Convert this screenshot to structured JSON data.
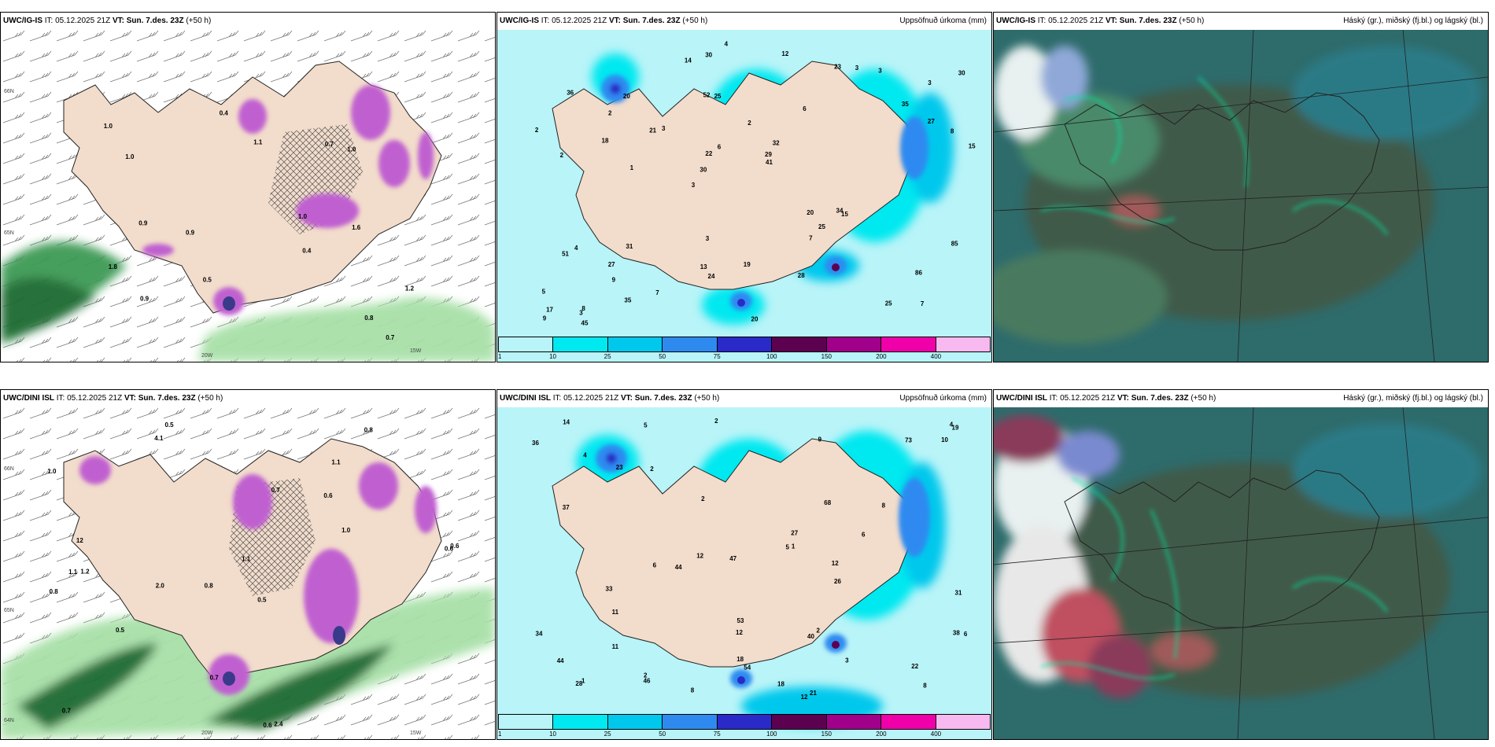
{
  "rows": [
    {
      "panels": [
        {
          "model": "UWC/IG-IS",
          "it_label": "IT:",
          "it_value": "05.12.2025 21Z",
          "vt_label": "VT:",
          "vt_value": "Sun. 7.des. 23Z",
          "lead": "(+50 h)",
          "right_title": ""
        },
        {
          "model": "UWC/IG-IS",
          "it_label": "IT:",
          "it_value": "05.12.2025 21Z",
          "vt_label": "VT:",
          "vt_value": "Sun. 7.des. 23Z",
          "lead": "(+50 h)",
          "right_title": "Uppsöfnuð úrkoma (mm)"
        },
        {
          "model": "UWC/IG-IS",
          "it_label": "IT:",
          "it_value": "05.12.2025 21Z",
          "vt_label": "VT:",
          "vt_value": "Sun. 7.des. 23Z",
          "lead": "(+50 h)",
          "right_title": "Háský (gr.), miðský (fj.bl.) og lágský (bl.)"
        }
      ]
    },
    {
      "panels": [
        {
          "model": "UWC/DINI ISL",
          "it_label": "IT:",
          "it_value": "05.12.2025 21Z",
          "vt_label": "VT:",
          "vt_value": "Sun. 7.des. 23Z",
          "lead": "(+50 h)",
          "right_title": ""
        },
        {
          "model": "UWC/DINI ISL",
          "it_label": "IT:",
          "it_value": "05.12.2025 21Z",
          "vt_label": "VT:",
          "vt_value": "Sun. 7.des. 23Z",
          "lead": "(+50 h)",
          "right_title": "Uppsöfnuð úrkoma (mm)"
        },
        {
          "model": "UWC/DINI ISL",
          "it_label": "IT:",
          "it_value": "05.12.2025 21Z",
          "vt_label": "VT:",
          "vt_value": "Sun. 7.des. 23Z",
          "lead": "(+50 h)",
          "right_title": "Háský (gr.), miðský (fj.bl.) og lágský (bl.)"
        }
      ]
    }
  ],
  "precip_legend": {
    "ticks": [
      "1",
      "10",
      "25",
      "50",
      "75",
      "100",
      "150",
      "200",
      "400"
    ],
    "colors": [
      "#b8f4f8",
      "#00e8f0",
      "#00c8ec",
      "#2f8af0",
      "#2a2ac8",
      "#5c0050",
      "#a0008a",
      "#f000a8",
      "#f8b8f0"
    ]
  },
  "axis_labels": {
    "lat_66": "66N",
    "lat_65": "65N",
    "lat_64": "64N",
    "lon_20w": "20W",
    "lon_15w": "15W"
  },
  "values_top_precip": [
    "7",
    "2",
    "3",
    "3",
    "6",
    "8",
    "52",
    "2",
    "4",
    "3",
    "5",
    "9",
    "25",
    "32",
    "15",
    "36",
    "30",
    "15",
    "20",
    "27",
    "30",
    "13",
    "22",
    "20",
    "23",
    "31",
    "25",
    "86",
    "34",
    "20",
    "21",
    "18",
    "7",
    "35",
    "8",
    "29",
    "17",
    "24",
    "41",
    "51",
    "35",
    "30",
    "25",
    "28",
    "27",
    "45",
    "9",
    "19",
    "3",
    "4",
    "1",
    "2",
    "2",
    "3",
    "3",
    "12",
    "14",
    "6",
    "85",
    "3",
    "7"
  ],
  "values_bottom_precip": [
    "8",
    "12",
    "2",
    "3",
    "5",
    "4",
    "6",
    "8",
    "2",
    "2",
    "73",
    "54",
    "12",
    "12",
    "9",
    "5",
    "37",
    "46",
    "44",
    "36",
    "40",
    "19",
    "27",
    "28",
    "8",
    "33",
    "34",
    "11",
    "14",
    "26",
    "47",
    "21",
    "53",
    "10",
    "11",
    "12",
    "38",
    "44",
    "68",
    "22",
    "1",
    "6",
    "6",
    "1",
    "2",
    "2",
    "31",
    "18",
    "23",
    "18",
    "4"
  ],
  "values_top_ens": [
    "0.7",
    "0.9",
    "0.4",
    "1.0",
    "1.2",
    "1.0",
    "0.9",
    "0.9",
    "1.0",
    "1.1",
    "0.7",
    "0.8",
    "0.5",
    "0.4",
    "1.0",
    "1.8",
    "1.6"
  ],
  "values_bottom_ens": [
    "0.5",
    "1.1",
    "0.6",
    "0.8",
    "0.5",
    "1.2",
    "1.0",
    "0.6",
    "0.8",
    "0.7",
    "1.1",
    "0.7",
    "4.1",
    "2.0",
    "0.6",
    "2.4",
    "0.7",
    "0.8",
    "1.0",
    "0.5",
    "12",
    "1.1",
    "0.6"
  ]
}
